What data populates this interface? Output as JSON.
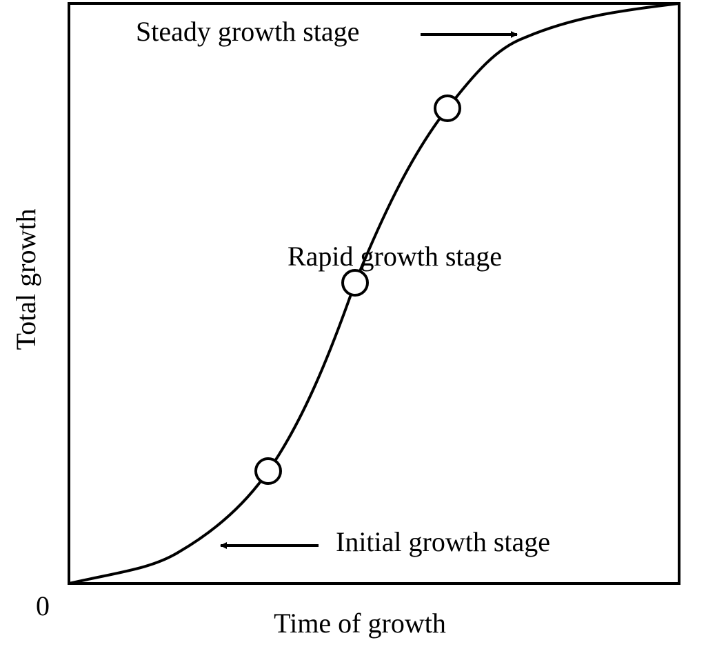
{
  "axes": {
    "x_label": "Time of growth",
    "y_label": "Total growth",
    "origin": "0"
  },
  "annotations": {
    "steady": "Steady growth stage",
    "rapid": "Rapid growth stage",
    "initial": "Initial growth stage"
  }
}
